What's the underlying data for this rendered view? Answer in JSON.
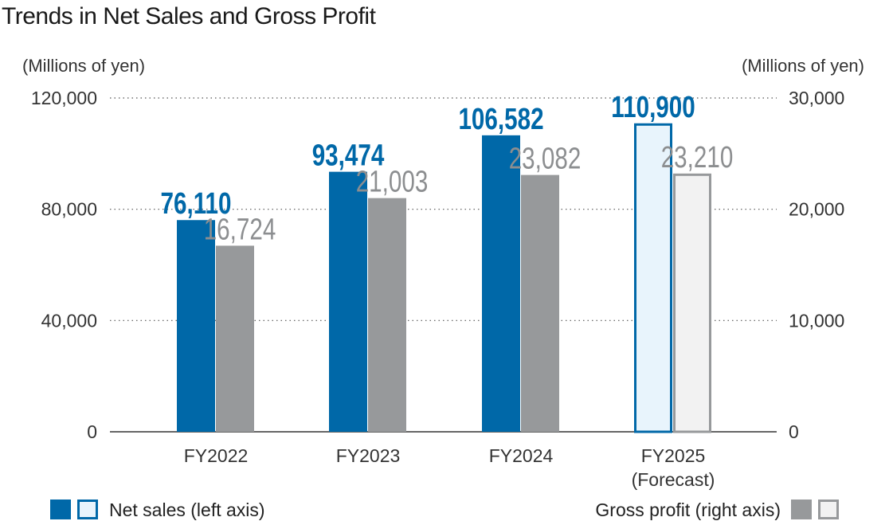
{
  "chart_data": {
    "type": "bar",
    "title": "Trends in Net Sales and Gross Profit",
    "categories": [
      [
        "FY2022"
      ],
      [
        "FY2023"
      ],
      [
        "FY2024"
      ],
      [
        "FY2025",
        "(Forecast)"
      ]
    ],
    "ylabel_left": "(Millions of yen)",
    "ylabel_right": "(Millions of yen)",
    "ylim_left": [
      0,
      120000
    ],
    "ylim_right": [
      0,
      30000
    ],
    "yticks_left": [
      "0",
      "40,000",
      "80,000",
      "120,000"
    ],
    "yticks_right": [
      "0",
      "10,000",
      "20,000",
      "30,000"
    ],
    "grid": "dotted horizontal",
    "series": [
      {
        "name": "Net sales (left axis)",
        "axis": "left",
        "values": [
          76110,
          93474,
          106582,
          110900
        ],
        "labels": [
          "76,110",
          "93,474",
          "106,582",
          "110,900"
        ],
        "color": "#0068a8",
        "forecast_fill": "#e8f4fc"
      },
      {
        "name": "Gross profit (right axis)",
        "axis": "right",
        "values": [
          16724,
          21003,
          23082,
          23210
        ],
        "labels": [
          "16,724",
          "21,003",
          "23,082",
          "23,210"
        ],
        "color": "#97999b",
        "forecast_fill": "#f2f2f2"
      }
    ],
    "legend_placement": "bottom"
  }
}
